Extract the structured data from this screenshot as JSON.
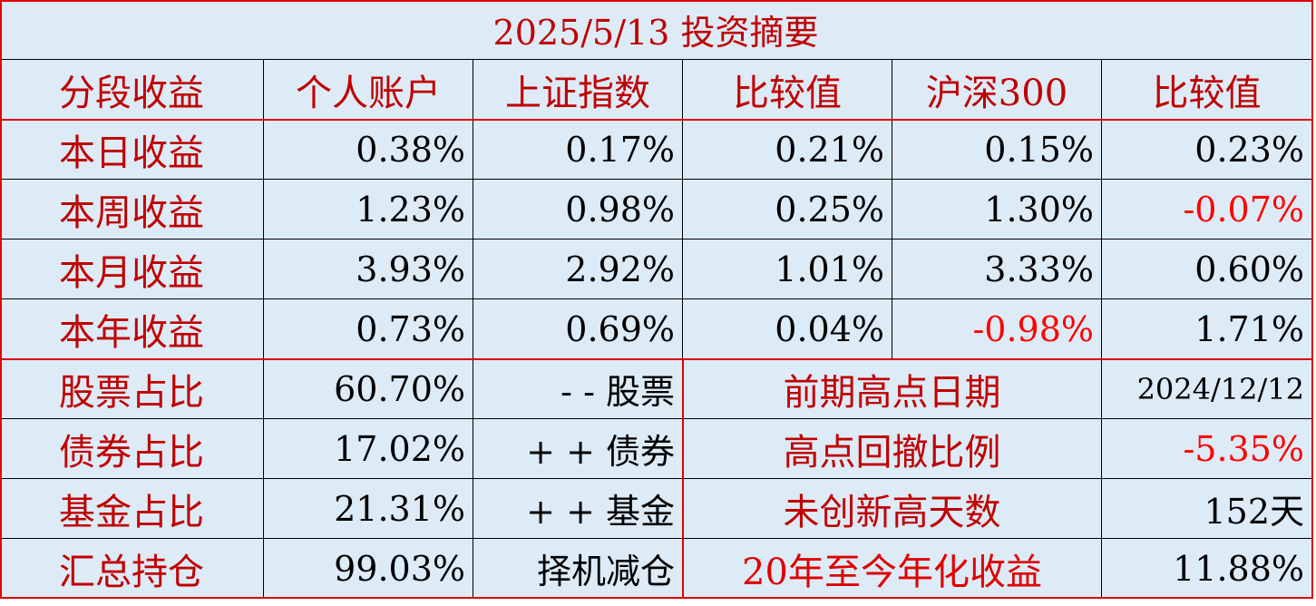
{
  "title": "2025/5/13 投资摘要",
  "header": [
    "分段收益",
    "个人账户",
    "上证指数",
    "比较值",
    "沪深300",
    "比较值"
  ],
  "returns": [
    [
      "本日收益",
      "0.38%",
      "0.17%",
      "0.21%",
      "0.15%",
      "0.23%"
    ],
    [
      "本周收益",
      "1.23%",
      "0.98%",
      "0.25%",
      "1.30%",
      "-0.07%"
    ],
    [
      "本月收益",
      "3.93%",
      "2.92%",
      "1.01%",
      "3.33%",
      "0.60%"
    ],
    [
      "本年收益",
      "0.73%",
      "0.69%",
      "0.04%",
      "-0.98%",
      "1.71%"
    ]
  ],
  "holdings": [
    {
      "label": "股票占比",
      "value": "60.70%",
      "note": "- - 股票",
      "metric": "前期高点日期",
      "metric_value": "2024/12/12"
    },
    {
      "label": "债券占比",
      "value": "17.02%",
      "note": "+ + 债券",
      "metric": "高点回撤比例",
      "metric_value": "-5.35%"
    },
    {
      "label": "基金占比",
      "value": "21.31%",
      "note": "+ + 基金",
      "metric": "未创新高天数",
      "metric_value": "152天"
    },
    {
      "label": "汇总持仓",
      "value": "99.03%",
      "note": "择机减仓",
      "metric": "20年至今年化收益",
      "metric_value": "11.88%"
    }
  ]
}
